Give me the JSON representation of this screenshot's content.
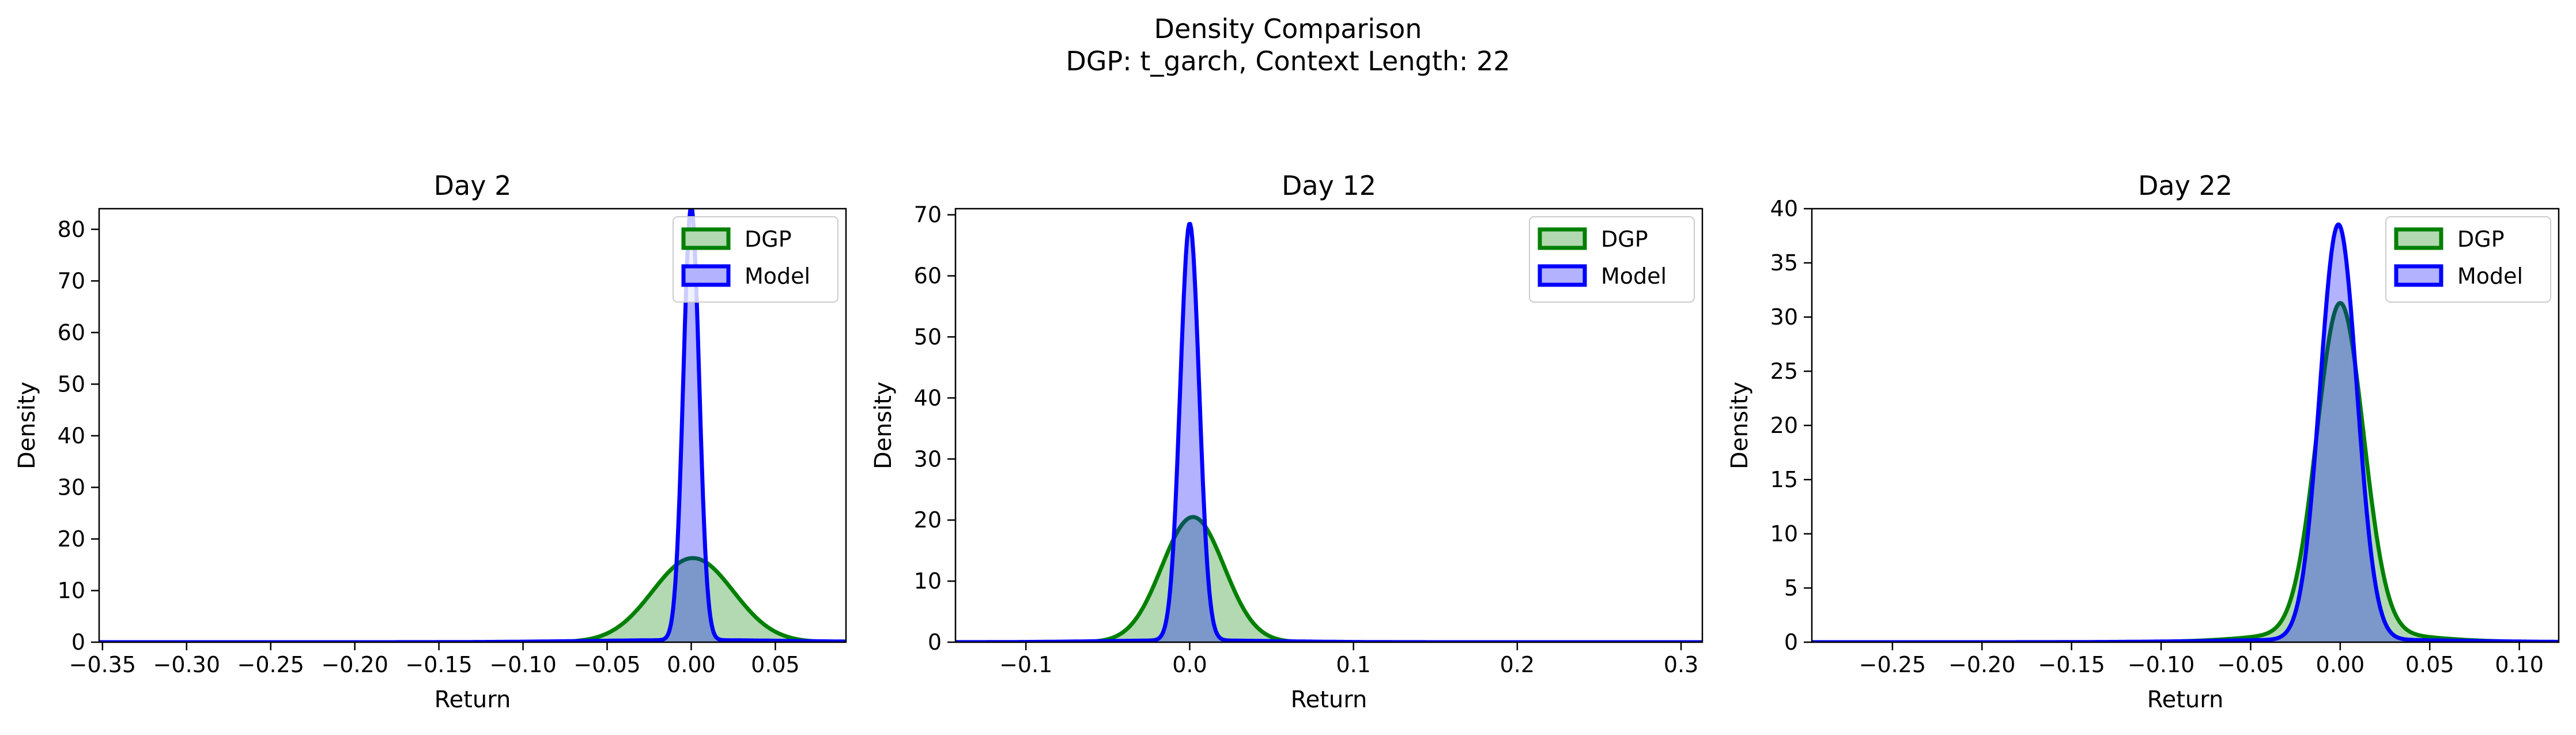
{
  "figure": {
    "title": "Density Comparison",
    "subtitle": "DGP: t_garch, Context Length: 22"
  },
  "colors": {
    "dgp_line": "#008000",
    "dgp_fill": "#008000",
    "model_line": "#0000ff",
    "model_fill": "#0000ff"
  },
  "chart_data": [
    {
      "type": "area",
      "title": "Day 2",
      "xlabel": "Return",
      "ylabel": "Density",
      "xlim": [
        -0.352,
        0.092
      ],
      "ylim": [
        0,
        84
      ],
      "xticks": [
        -0.35,
        -0.3,
        -0.25,
        -0.2,
        -0.15,
        -0.1,
        -0.05,
        0.0,
        0.05
      ],
      "xtick_labels": [
        "−0.35",
        "−0.30",
        "−0.25",
        "−0.20",
        "−0.15",
        "−0.10",
        "−0.05",
        "0.00",
        "0.05"
      ],
      "yticks": [
        0,
        10,
        20,
        30,
        40,
        50,
        60,
        70,
        80
      ],
      "ytick_labels": [
        "0",
        "10",
        "20",
        "30",
        "40",
        "50",
        "60",
        "70",
        "80"
      ],
      "legend": "top-right",
      "series": [
        {
          "name": "DGP",
          "kind": "gaussian",
          "mean": 0.001,
          "sd": 0.024,
          "peak": 16.3
        },
        {
          "name": "Model",
          "kind": "gaussian",
          "mean": 0.0,
          "sd": 0.0047,
          "peak": 84,
          "tail": {
            "mean": 0.0,
            "sd": 0.06,
            "peak": 0.4
          }
        }
      ]
    },
    {
      "type": "area",
      "title": "Day 12",
      "xlabel": "Return",
      "ylabel": "Density",
      "xlim": [
        -0.143,
        0.313
      ],
      "ylim": [
        0,
        71
      ],
      "xticks": [
        -0.1,
        0.0,
        0.1,
        0.2,
        0.3
      ],
      "xtick_labels": [
        "−0.1",
        "0.0",
        "0.1",
        "0.2",
        "0.3"
      ],
      "yticks": [
        0,
        10,
        20,
        30,
        40,
        50,
        60,
        70
      ],
      "ytick_labels": [
        "0",
        "10",
        "20",
        "30",
        "40",
        "50",
        "60",
        "70"
      ],
      "legend": "top-right",
      "series": [
        {
          "name": "DGP",
          "kind": "gaussian",
          "mean": 0.002,
          "sd": 0.019,
          "peak": 20.5
        },
        {
          "name": "Model",
          "kind": "gaussian",
          "mean": 0.0,
          "sd": 0.0058,
          "peak": 68.3,
          "tail": {
            "mean": 0.0,
            "sd": 0.05,
            "peak": 0.3
          }
        }
      ]
    },
    {
      "type": "area",
      "title": "Day 22",
      "xlabel": "Return",
      "ylabel": "Density",
      "xlim": [
        -0.295,
        0.122
      ],
      "ylim": [
        0,
        40
      ],
      "xticks": [
        -0.25,
        -0.2,
        -0.15,
        -0.1,
        -0.05,
        0.0,
        0.05,
        0.1
      ],
      "xtick_labels": [
        "−0.25",
        "−0.20",
        "−0.15",
        "−0.10",
        "−0.05",
        "0.00",
        "0.05",
        "0.10"
      ],
      "yticks": [
        0,
        5,
        10,
        15,
        20,
        25,
        30,
        35,
        40
      ],
      "ytick_labels": [
        "0",
        "5",
        "10",
        "15",
        "20",
        "25",
        "30",
        "35",
        "40"
      ],
      "legend": "top-right",
      "series": [
        {
          "name": "DGP",
          "kind": "gaussian",
          "mean": 0.0,
          "sd": 0.013,
          "peak": 30.3,
          "tail": {
            "mean": 0.0,
            "sd": 0.04,
            "peak": 1.0
          }
        },
        {
          "name": "Model",
          "kind": "gaussian",
          "mean": -0.001,
          "sd": 0.0103,
          "peak": 38.3,
          "tail": {
            "mean": 0.0,
            "sd": 0.06,
            "peak": 0.25
          }
        }
      ]
    }
  ]
}
